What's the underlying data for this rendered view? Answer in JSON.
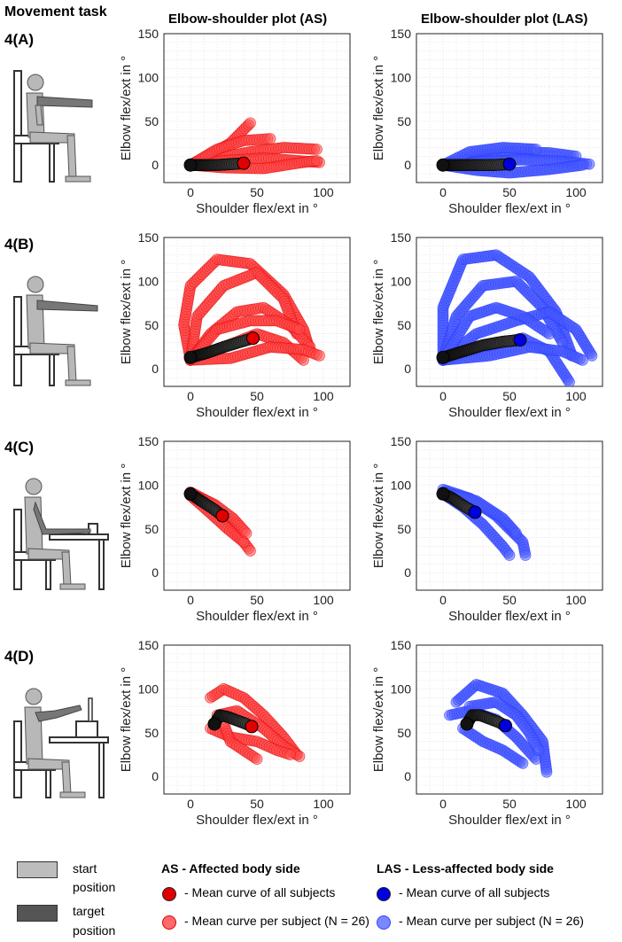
{
  "headers": {
    "movement_task": "Movement task",
    "col_as": "Elbow-shoulder plot (AS)",
    "col_las": "Elbow-shoulder plot (LAS)"
  },
  "rows": [
    {
      "label": "4(A)"
    },
    {
      "label": "4(B)"
    },
    {
      "label": "4(C)"
    },
    {
      "label": "4(D)"
    }
  ],
  "axis": {
    "xlabel": "Shoulder flex/ext in °",
    "ylabel": "Elbow flex/ext in °",
    "xticks": [
      "0",
      "50",
      "100"
    ],
    "yticks": [
      "0",
      "50",
      "100",
      "150"
    ]
  },
  "legend": {
    "start": "start position",
    "start_line1": "start",
    "start_line2": "position",
    "target_line1": "target",
    "target_line2": "position",
    "as_title": "AS - Affected body side",
    "las_title": "LAS - Less-affected body side",
    "mean_all": "- Mean curve of all subjects",
    "mean_per": "- Mean curve per subject (N = 26)"
  },
  "colors": {
    "as_mean": "#e00000",
    "as_subject": "#ff4a4a",
    "las_mean": "#0000dd",
    "las_subject": "#4a5cff",
    "swatch_start": "#bdbdbd",
    "swatch_target": "#555555",
    "grand_mean": "#1a1a1a"
  },
  "chart_data": [
    {
      "type": "scatter",
      "panel": "4(A) AS",
      "xlim": [
        -20,
        120
      ],
      "ylim": [
        -20,
        150
      ],
      "grid": true,
      "series": [
        {
          "values": [
            [
              0,
              0
            ],
            [
              10,
              0
            ],
            [
              20,
              0
            ],
            [
              30,
              1
            ],
            [
              40,
              2
            ]
          ],
          "role": "grand-mean"
        },
        {
          "values": [
            [
              0,
              0
            ],
            [
              15,
              12
            ],
            [
              30,
              25
            ],
            [
              45,
              48
            ]
          ]
        },
        {
          "values": [
            [
              0,
              0
            ],
            [
              20,
              8
            ],
            [
              45,
              15
            ],
            [
              70,
              20
            ],
            [
              95,
              18
            ]
          ]
        },
        {
          "values": [
            [
              0,
              0
            ],
            [
              25,
              5
            ],
            [
              55,
              8
            ],
            [
              80,
              5
            ],
            [
              97,
              3
            ]
          ]
        },
        {
          "values": [
            [
              0,
              0
            ],
            [
              25,
              -3
            ],
            [
              55,
              -4
            ],
            [
              80,
              2
            ],
            [
              95,
              5
            ]
          ]
        },
        {
          "values": [
            [
              0,
              0
            ],
            [
              20,
              18
            ],
            [
              40,
              28
            ],
            [
              60,
              30
            ]
          ]
        }
      ]
    },
    {
      "type": "scatter",
      "panel": "4(A) LAS",
      "xlim": [
        -20,
        120
      ],
      "ylim": [
        -20,
        150
      ],
      "grid": true,
      "series": [
        {
          "values": [
            [
              0,
              0
            ],
            [
              12,
              0
            ],
            [
              25,
              0
            ],
            [
              38,
              0
            ],
            [
              50,
              1
            ]
          ],
          "role": "grand-mean"
        },
        {
          "values": [
            [
              0,
              0
            ],
            [
              25,
              10
            ],
            [
              50,
              15
            ],
            [
              80,
              14
            ],
            [
              100,
              10
            ]
          ]
        },
        {
          "values": [
            [
              0,
              0
            ],
            [
              30,
              4
            ],
            [
              60,
              6
            ],
            [
              90,
              4
            ],
            [
              110,
              1
            ]
          ]
        },
        {
          "values": [
            [
              0,
              0
            ],
            [
              25,
              -6
            ],
            [
              50,
              -9
            ],
            [
              80,
              -5
            ],
            [
              105,
              0
            ]
          ]
        },
        {
          "values": [
            [
              0,
              0
            ],
            [
              20,
              15
            ],
            [
              45,
              20
            ],
            [
              70,
              18
            ]
          ]
        }
      ]
    },
    {
      "type": "scatter",
      "panel": "4(B) AS",
      "xlim": [
        -20,
        120
      ],
      "ylim": [
        -20,
        150
      ],
      "grid": true,
      "series": [
        {
          "values": [
            [
              0,
              13
            ],
            [
              12,
              18
            ],
            [
              25,
              25
            ],
            [
              38,
              31
            ],
            [
              47,
              35
            ]
          ],
          "role": "grand-mean"
        },
        {
          "values": [
            [
              0,
              10
            ],
            [
              -5,
              50
            ],
            [
              0,
              95
            ],
            [
              20,
              125
            ],
            [
              45,
              120
            ],
            [
              70,
              85
            ],
            [
              85,
              45
            ],
            [
              90,
              20
            ]
          ]
        },
        {
          "values": [
            [
              0,
              10
            ],
            [
              5,
              60
            ],
            [
              25,
              95
            ],
            [
              50,
              110
            ],
            [
              70,
              80
            ],
            [
              80,
              40
            ]
          ]
        },
        {
          "values": [
            [
              0,
              10
            ],
            [
              15,
              40
            ],
            [
              35,
              65
            ],
            [
              55,
              70
            ],
            [
              75,
              50
            ],
            [
              90,
              25
            ]
          ]
        },
        {
          "values": [
            [
              0,
              10
            ],
            [
              25,
              25
            ],
            [
              50,
              40
            ],
            [
              70,
              30
            ],
            [
              85,
              10
            ]
          ]
        },
        {
          "values": [
            [
              0,
              10
            ],
            [
              20,
              45
            ],
            [
              45,
              55
            ],
            [
              65,
              55
            ],
            [
              82,
              45
            ]
          ]
        },
        {
          "values": [
            [
              0,
              10
            ],
            [
              30,
              12
            ],
            [
              60,
              25
            ],
            [
              85,
              22
            ],
            [
              97,
              15
            ]
          ]
        }
      ]
    },
    {
      "type": "scatter",
      "panel": "4(B) LAS",
      "xlim": [
        -20,
        120
      ],
      "ylim": [
        -20,
        150
      ],
      "grid": true,
      "series": [
        {
          "values": [
            [
              0,
              13
            ],
            [
              15,
              20
            ],
            [
              30,
              27
            ],
            [
              45,
              31
            ],
            [
              58,
              33
            ]
          ],
          "role": "grand-mean"
        },
        {
          "values": [
            [
              0,
              10
            ],
            [
              0,
              70
            ],
            [
              15,
              125
            ],
            [
              40,
              130
            ],
            [
              65,
              105
            ],
            [
              85,
              65
            ],
            [
              97,
              15
            ]
          ]
        },
        {
          "values": [
            [
              0,
              10
            ],
            [
              10,
              60
            ],
            [
              30,
              95
            ],
            [
              55,
              100
            ],
            [
              75,
              70
            ],
            [
              90,
              30
            ]
          ]
        },
        {
          "values": [
            [
              0,
              10
            ],
            [
              25,
              40
            ],
            [
              55,
              55
            ],
            [
              80,
              65
            ],
            [
              100,
              45
            ],
            [
              112,
              15
            ]
          ]
        },
        {
          "values": [
            [
              0,
              10
            ],
            [
              30,
              25
            ],
            [
              60,
              35
            ],
            [
              80,
              20
            ],
            [
              95,
              -15
            ]
          ]
        },
        {
          "values": [
            [
              0,
              10
            ],
            [
              20,
              60
            ],
            [
              40,
              70
            ],
            [
              60,
              60
            ],
            [
              80,
              40
            ]
          ]
        },
        {
          "values": [
            [
              0,
              10
            ],
            [
              35,
              15
            ],
            [
              65,
              25
            ],
            [
              90,
              20
            ],
            [
              105,
              10
            ]
          ]
        }
      ]
    },
    {
      "type": "scatter",
      "panel": "4(C) AS",
      "xlim": [
        -20,
        120
      ],
      "ylim": [
        -20,
        150
      ],
      "grid": true,
      "series": [
        {
          "values": [
            [
              0,
              90
            ],
            [
              6,
              84
            ],
            [
              12,
              78
            ],
            [
              18,
              72
            ],
            [
              24,
              65
            ]
          ],
          "role": "grand-mean"
        },
        {
          "values": [
            [
              0,
              92
            ],
            [
              15,
              80
            ],
            [
              30,
              55
            ],
            [
              45,
              25
            ]
          ]
        },
        {
          "values": [
            [
              0,
              88
            ],
            [
              12,
              72
            ],
            [
              28,
              50
            ],
            [
              40,
              35
            ]
          ]
        },
        {
          "values": [
            [
              0,
              90
            ],
            [
              18,
              78
            ],
            [
              32,
              62
            ],
            [
              42,
              45
            ]
          ]
        }
      ]
    },
    {
      "type": "scatter",
      "panel": "4(C) LAS",
      "xlim": [
        -20,
        120
      ],
      "ylim": [
        -20,
        150
      ],
      "grid": true,
      "series": [
        {
          "values": [
            [
              0,
              90
            ],
            [
              6,
              86
            ],
            [
              12,
              80
            ],
            [
              18,
              74
            ],
            [
              24,
              69
            ]
          ],
          "role": "grand-mean"
        },
        {
          "values": [
            [
              0,
              95
            ],
            [
              20,
              85
            ],
            [
              40,
              65
            ],
            [
              60,
              35
            ],
            [
              62,
              20
            ]
          ]
        },
        {
          "values": [
            [
              0,
              90
            ],
            [
              15,
              75
            ],
            [
              30,
              55
            ],
            [
              45,
              30
            ],
            [
              50,
              20
            ]
          ]
        },
        {
          "values": [
            [
              0,
              92
            ],
            [
              25,
              82
            ],
            [
              45,
              62
            ],
            [
              55,
              45
            ]
          ]
        }
      ]
    },
    {
      "type": "scatter",
      "panel": "4(D) AS",
      "xlim": [
        -20,
        120
      ],
      "ylim": [
        -20,
        150
      ],
      "grid": true,
      "series": [
        {
          "values": [
            [
              18,
              60
            ],
            [
              22,
              70
            ],
            [
              28,
              68
            ],
            [
              35,
              64
            ],
            [
              42,
              60
            ],
            [
              46,
              57
            ]
          ],
          "role": "grand-mean"
        },
        {
          "values": [
            [
              15,
              90
            ],
            [
              25,
              100
            ],
            [
              40,
              90
            ],
            [
              55,
              70
            ],
            [
              70,
              45
            ],
            [
              80,
              25
            ]
          ]
        },
        {
          "values": [
            [
              20,
              70
            ],
            [
              35,
              75
            ],
            [
              55,
              55
            ],
            [
              70,
              35
            ],
            [
              82,
              23
            ]
          ]
        },
        {
          "values": [
            [
              15,
              55
            ],
            [
              30,
              45
            ],
            [
              50,
              40
            ],
            [
              65,
              30
            ],
            [
              75,
              25
            ]
          ]
        },
        {
          "values": [
            [
              25,
              60
            ],
            [
              30,
              40
            ],
            [
              40,
              30
            ],
            [
              50,
              20
            ]
          ]
        }
      ]
    },
    {
      "type": "scatter",
      "panel": "4(D) LAS",
      "xlim": [
        -20,
        120
      ],
      "ylim": [
        -20,
        150
      ],
      "grid": true,
      "series": [
        {
          "values": [
            [
              18,
              60
            ],
            [
              22,
              70
            ],
            [
              28,
              70
            ],
            [
              35,
              66
            ],
            [
              42,
              62
            ],
            [
              47,
              58
            ]
          ],
          "role": "grand-mean"
        },
        {
          "values": [
            [
              10,
              85
            ],
            [
              25,
              105
            ],
            [
              45,
              95
            ],
            [
              60,
              70
            ],
            [
              75,
              40
            ],
            [
              78,
              5
            ]
          ]
        },
        {
          "values": [
            [
              5,
              70
            ],
            [
              20,
              75
            ],
            [
              40,
              65
            ],
            [
              55,
              45
            ],
            [
              70,
              20
            ]
          ]
        },
        {
          "values": [
            [
              15,
              55
            ],
            [
              30,
              40
            ],
            [
              45,
              30
            ],
            [
              55,
              20
            ],
            [
              60,
              15
            ]
          ]
        },
        {
          "values": [
            [
              20,
              80
            ],
            [
              40,
              85
            ],
            [
              55,
              70
            ],
            [
              65,
              50
            ],
            [
              72,
              30
            ]
          ]
        }
      ]
    }
  ]
}
